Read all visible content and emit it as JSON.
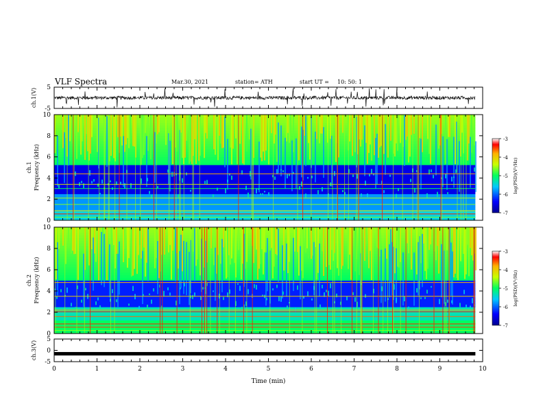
{
  "header": {
    "title": "VLF Spectra",
    "date": "Mar.30, 2021",
    "station": "station= ATH",
    "start_label": "start  UT =",
    "start_time": "10: 50: 1"
  },
  "chart_data": [
    {
      "type": "line",
      "panel": "ch1-waveform",
      "ylabel": "ch.1(V)",
      "ylim": [
        -5,
        5
      ],
      "yticks": [
        "5",
        "-5"
      ],
      "x_range_min": [
        0,
        9.83
      ],
      "series": [
        {
          "values_summary": "noisy trace centred near 0 V, amplitude about ±1 V with sporadic spikes"
        }
      ]
    },
    {
      "type": "heatmap",
      "panel": "ch1-spectrogram",
      "ylabel_channel": "ch.1",
      "ylabel": "Frequency (kHz)",
      "ylim": [
        0,
        10
      ],
      "yticks": [
        "0",
        "2",
        "4",
        "6",
        "8",
        "10"
      ],
      "x_range_min": [
        0,
        9.83
      ],
      "colorbar": {
        "label": "log(PSD)(V²/Hz)",
        "range": [
          -7,
          -3
        ],
        "ticks": [
          "-3",
          "-4",
          "-5",
          "-6",
          "-7"
        ]
      },
      "bands_khz": {
        "upper_noise": [
          5.2,
          10
        ],
        "quiet_band": [
          2.4,
          5.0
        ],
        "lower_band": [
          0,
          2.4
        ]
      }
    },
    {
      "type": "heatmap",
      "panel": "ch2-spectrogram",
      "ylabel_channel": "ch.2",
      "ylabel": "Frequency (kHz)",
      "ylim": [
        0,
        10
      ],
      "yticks": [
        "0",
        "2",
        "4",
        "6",
        "8",
        "10"
      ],
      "x_range_min": [
        0,
        9.83
      ],
      "colorbar": {
        "label": "log(PSD)(V²/Hz)",
        "range": [
          -7,
          -3
        ],
        "ticks": [
          "-3",
          "-4",
          "-5",
          "-6",
          "-7"
        ]
      },
      "bands_khz": {
        "upper_noise": [
          5.0,
          10
        ],
        "quiet_band": [
          2.4,
          4.8
        ],
        "lower_band": [
          0,
          2.4
        ]
      }
    },
    {
      "type": "line",
      "panel": "ch3-waveform",
      "ylabel": "ch.3(V)",
      "ylim": [
        -5,
        5
      ],
      "yticks": [
        "5",
        "0",
        "-5"
      ],
      "x_range_min": [
        0,
        9.83
      ],
      "series": [
        {
          "values_summary": "constant level near -1.5 V"
        }
      ]
    }
  ],
  "xaxis": {
    "label": "Time (min)",
    "ticks": [
      "0",
      "1",
      "2",
      "3",
      "4",
      "5",
      "6",
      "7",
      "8",
      "9",
      "10"
    ]
  }
}
